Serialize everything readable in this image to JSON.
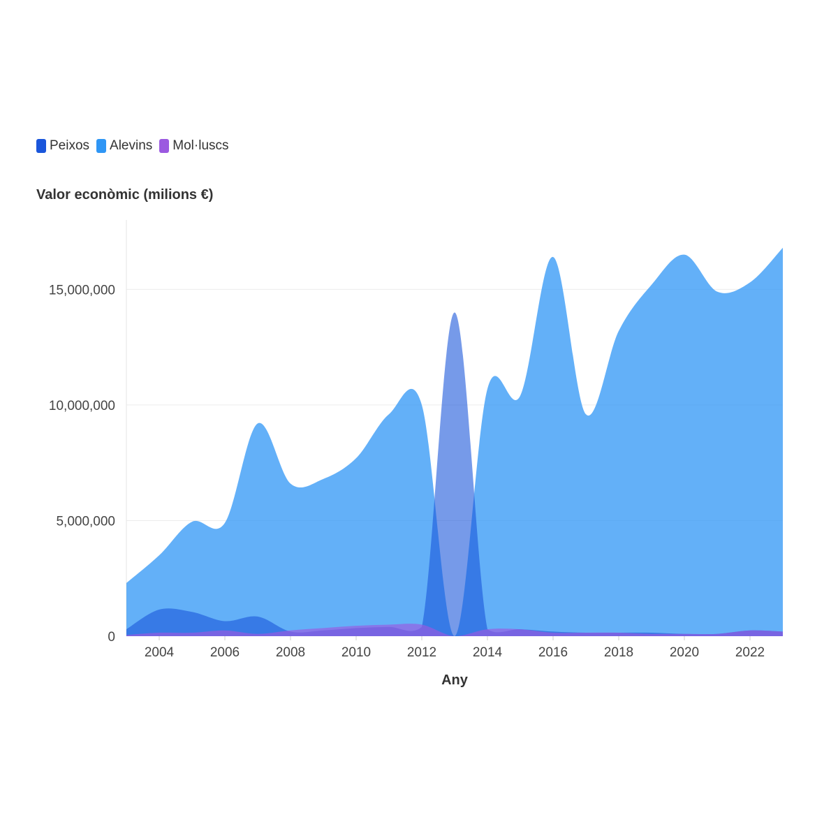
{
  "legend": [
    {
      "name": "Peixos",
      "color": "#1a56db"
    },
    {
      "name": "Alevins",
      "color": "#2f96f5"
    },
    {
      "name": "Mol·luscs",
      "color": "#9b59e0"
    }
  ],
  "y_title": "Valor econòmic (milions €)",
  "x_title": "Any",
  "chart_data": {
    "type": "area",
    "x": [
      2003,
      2004,
      2005,
      2006,
      2007,
      2008,
      2009,
      2010,
      2011,
      2012,
      2013,
      2014,
      2015,
      2016,
      2017,
      2018,
      2019,
      2020,
      2021,
      2022,
      2023
    ],
    "xlim": [
      2003,
      2023
    ],
    "ylim": [
      0,
      18000000
    ],
    "x_ticks": [
      2004,
      2006,
      2008,
      2010,
      2012,
      2014,
      2016,
      2018,
      2020,
      2022
    ],
    "y_ticks": [
      0,
      5000000,
      10000000,
      15000000
    ],
    "y_tick_labels": [
      "0",
      "5,000,000",
      "10,000,000",
      "15,000,000"
    ],
    "xlabel": "Any",
    "ylabel": "Valor econòmic (milions €)",
    "grid": "horizontal",
    "legend_position": "top-left",
    "series": [
      {
        "name": "Alevins",
        "color": "#2f96f5",
        "values": [
          2300000,
          3500000,
          4950000,
          4900000,
          9200000,
          6600000,
          6800000,
          7700000,
          9600000,
          10000000,
          0,
          10700000,
          10400000,
          16400000,
          9600000,
          13200000,
          15200000,
          16500000,
          14900000,
          15300000,
          16800000
        ]
      },
      {
        "name": "Peixos",
        "color": "#1a56db",
        "values": [
          300000,
          1150000,
          1050000,
          650000,
          850000,
          200000,
          250000,
          350000,
          400000,
          400000,
          14000000,
          300000,
          300000,
          200000,
          150000,
          150000,
          150000,
          100000,
          100000,
          250000,
          200000
        ]
      },
      {
        "name": "Mol·luscs",
        "color": "#9b59e0",
        "values": [
          50000,
          150000,
          150000,
          250000,
          100000,
          250000,
          350000,
          450000,
          500000,
          500000,
          0,
          300000,
          300000,
          150000,
          150000,
          150000,
          100000,
          100000,
          100000,
          250000,
          200000
        ]
      }
    ]
  }
}
